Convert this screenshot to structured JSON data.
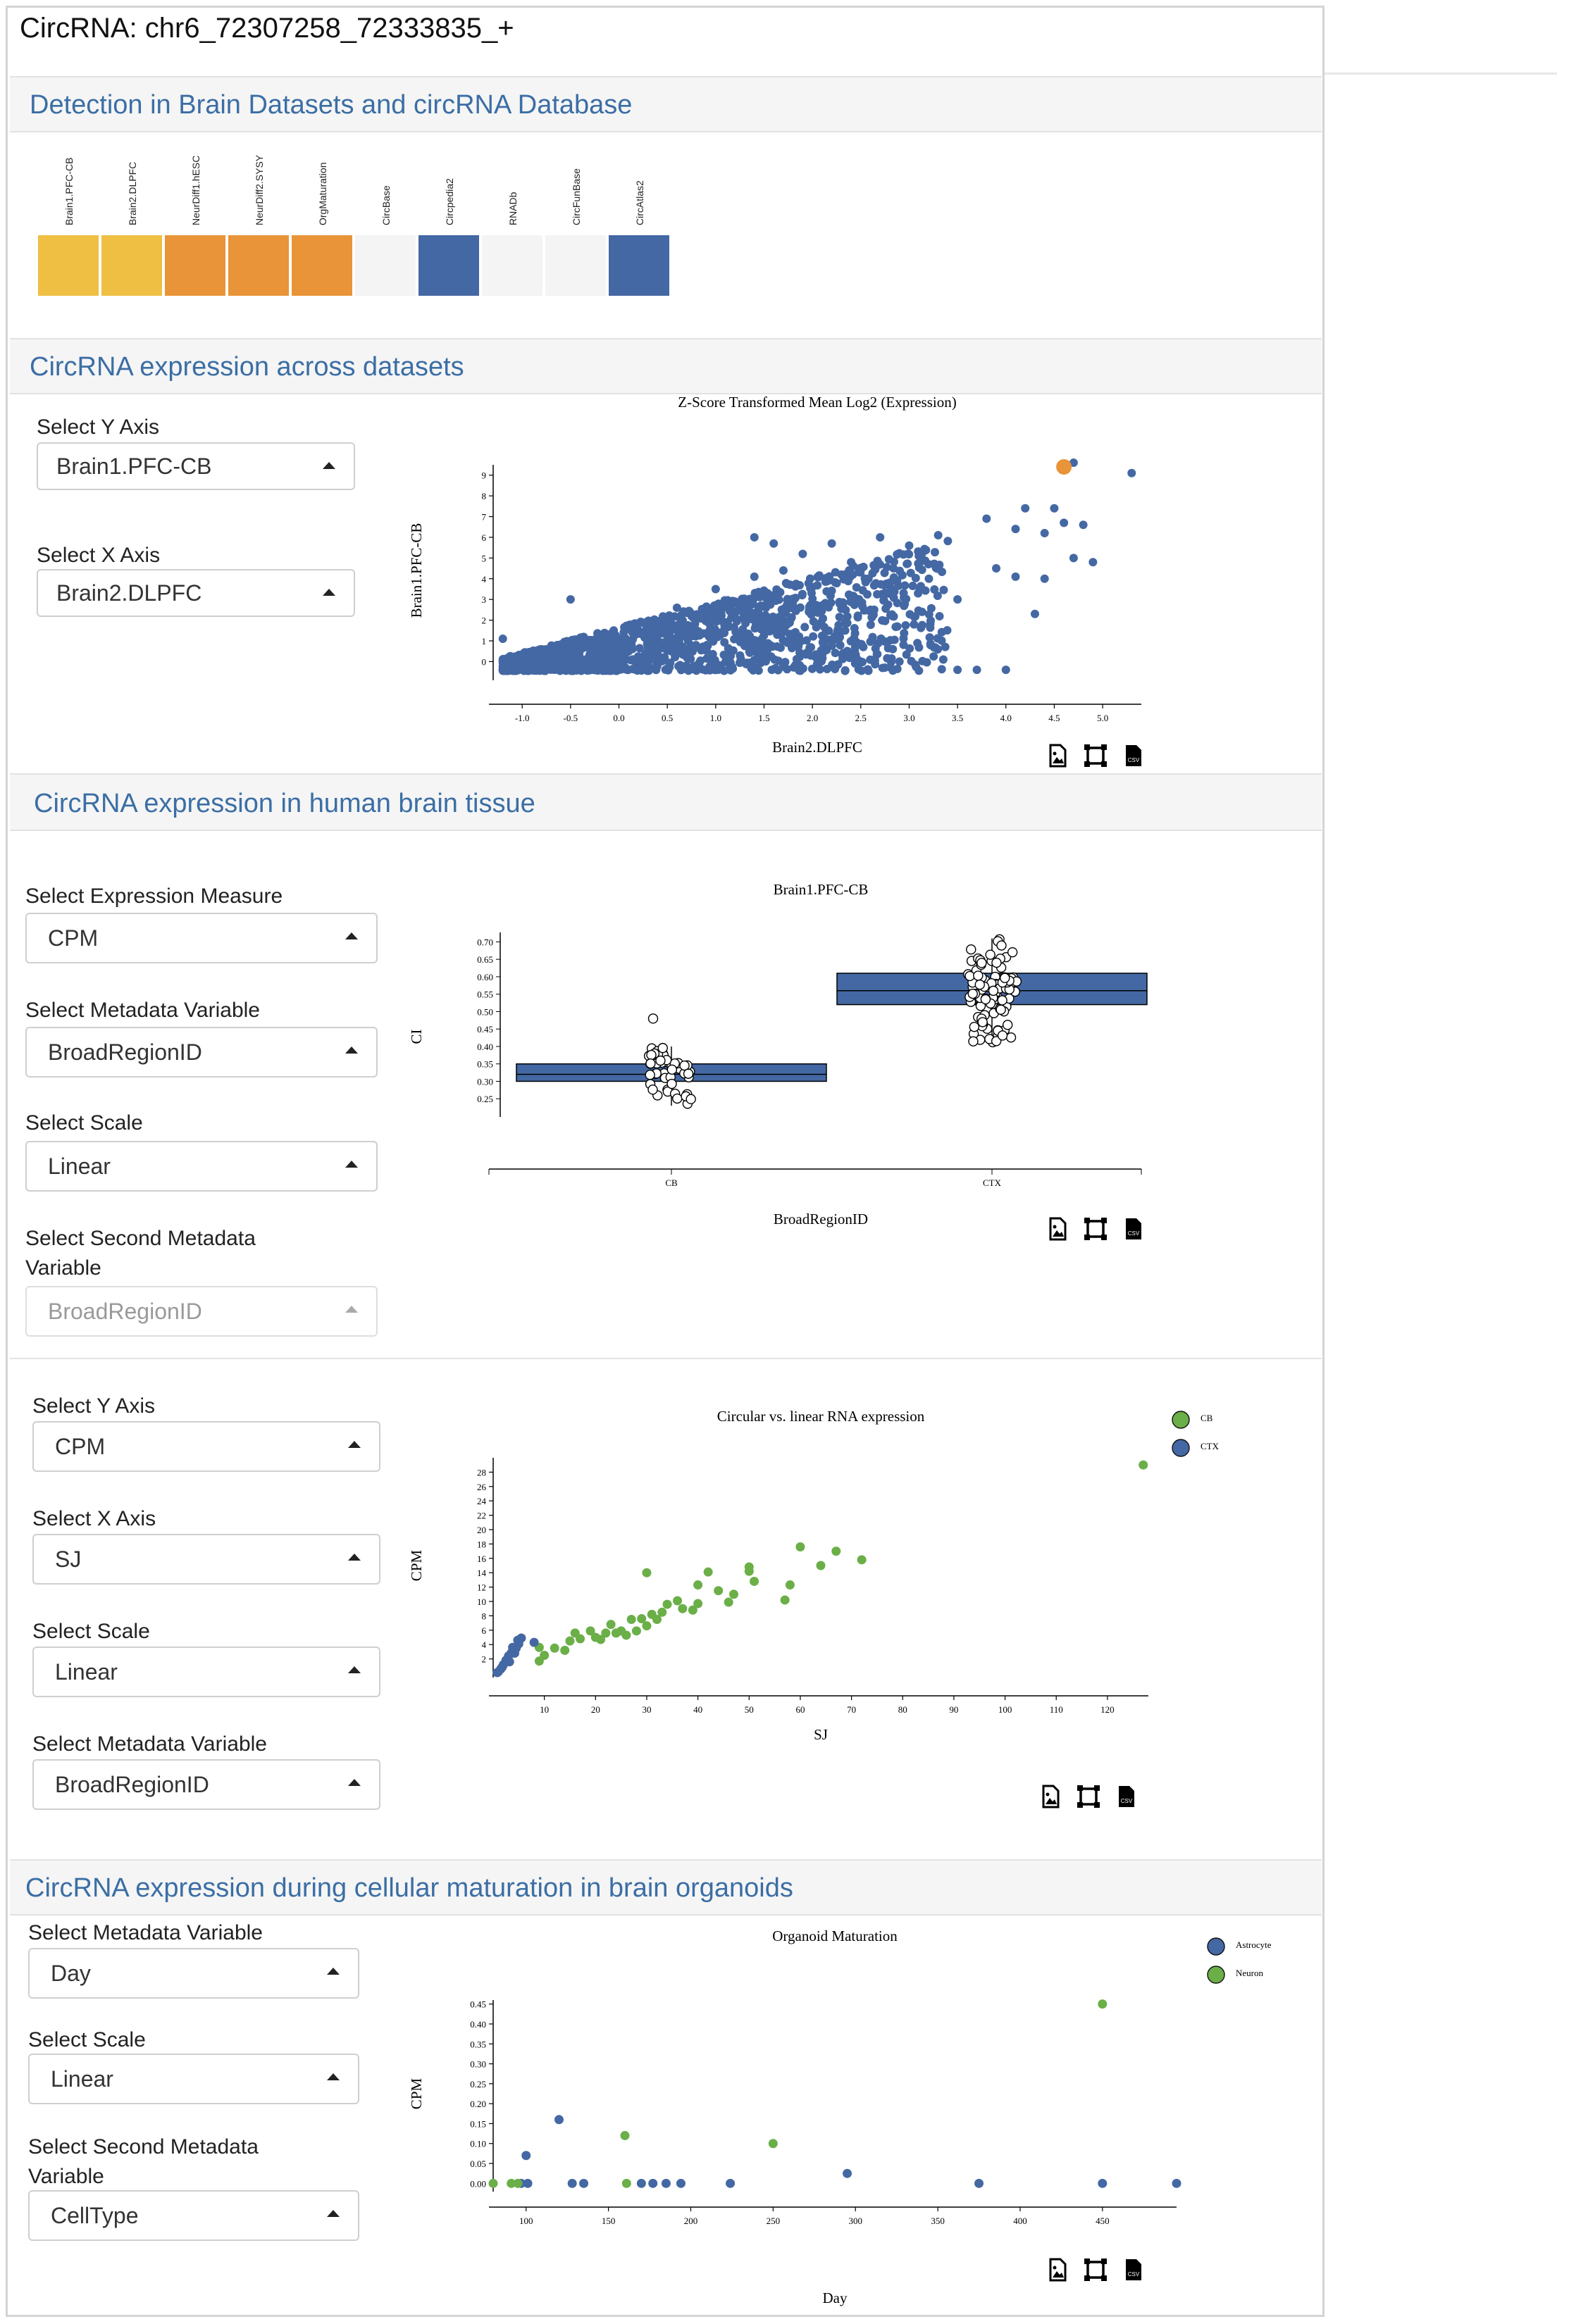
{
  "page": {
    "title": "CircRNA: chr6_72307258_72333835_+"
  },
  "sections": {
    "detection": {
      "title": "Detection in Brain Datasets and circRNA Database",
      "datasets": [
        {
          "label": "Brain1.PFC-CB",
          "color": "#EFBF44"
        },
        {
          "label": "Brain2.DLPFC",
          "color": "#EFBF44"
        },
        {
          "label": "NeurDiff1.hESC",
          "color": "#E99438"
        },
        {
          "label": "NeurDiff2.SYSY",
          "color": "#E99438"
        },
        {
          "label": "OrgMaturation",
          "color": "#E99438"
        },
        {
          "label": "CircBase",
          "color": "#F4F4F4"
        },
        {
          "label": "Circpedia2",
          "color": "#4468A3"
        },
        {
          "label": "RNADb",
          "color": "#F4F4F4"
        },
        {
          "label": "CircFunBase",
          "color": "#F4F4F4"
        },
        {
          "label": "CircAtlas2",
          "color": "#4468A3"
        }
      ]
    },
    "across": {
      "title": "CircRNA expression across datasets",
      "y_label": "Select Y Axis",
      "y_value": "Brain1.PFC-CB",
      "x_label": "Select X Axis",
      "x_value": "Brain2.DLPFC"
    },
    "tissue": {
      "title": "CircRNA expression in human brain tissue",
      "measure_label": "Select Expression Measure",
      "measure_value": "CPM",
      "meta_label": "Select Metadata Variable",
      "meta_value": "BroadRegionID",
      "scale_label": "Select Scale",
      "scale_value": "Linear",
      "second_label": "Select Second Metadata Variable",
      "second_value": "BroadRegionID"
    },
    "circlin": {
      "y_label": "Select Y Axis",
      "y_value": "CPM",
      "x_label": "Select X Axis",
      "x_value": "SJ",
      "scale_label": "Select Scale",
      "scale_value": "Linear",
      "meta_label": "Select Metadata Variable",
      "meta_value": "BroadRegionID"
    },
    "organoid": {
      "title": "CircRNA expression during cellular maturation in brain organoids",
      "meta_label": "Select Metadata Variable",
      "meta_value": "Day",
      "scale_label": "Select Scale",
      "scale_value": "Linear",
      "second_label": "Select Second Metadata Variable",
      "second_value": "CellType"
    }
  },
  "toolbar": {
    "icons": [
      "image-download-icon",
      "fullscreen-icon",
      "csv-download-icon"
    ],
    "csv_text": "CSV"
  },
  "colors": {
    "blue": "#4468A3",
    "orange": "#E99438",
    "green": "#6AAF47",
    "yellow": "#EFBF44",
    "heading": "#3b6ea5"
  },
  "chart_data": [
    {
      "type": "scatter",
      "title": "Z-Score Transformed Mean Log2 (Expression)",
      "xlabel": "Brain2.DLPFC",
      "ylabel": "Brain1.PFC-CB",
      "xlim": [
        -1.3,
        5.4
      ],
      "ylim": [
        -0.7,
        9.5
      ],
      "xticks": [
        -1.0,
        -0.5,
        0.0,
        0.5,
        1.0,
        1.5,
        2.0,
        2.5,
        3.0,
        3.5,
        4.0,
        4.5,
        5.0
      ],
      "yticks": [
        0,
        1,
        2,
        3,
        4,
        5,
        6,
        7,
        8,
        9
      ],
      "series": [
        {
          "color": "#4468A3",
          "points": [
            [
              4.7,
              9.6
            ],
            [
              5.3,
              9.1
            ],
            [
              4.5,
              7.4
            ],
            [
              4.6,
              6.7
            ],
            [
              4.8,
              6.6
            ],
            [
              4.4,
              6.2
            ],
            [
              4.1,
              6.4
            ],
            [
              4.7,
              5.0
            ],
            [
              4.9,
              4.8
            ],
            [
              4.4,
              4.0
            ],
            [
              4.1,
              4.1
            ],
            [
              4.3,
              2.3
            ],
            [
              3.9,
              4.5
            ],
            [
              3.5,
              3.0
            ],
            [
              3.2,
              4.7
            ],
            [
              3.0,
              5.6
            ],
            [
              2.8,
              3.3
            ],
            [
              2.6,
              2.5
            ],
            [
              2.9,
              0.0
            ],
            [
              2.5,
              0.0
            ],
            [
              3.5,
              -0.4
            ],
            [
              3.7,
              -0.4
            ],
            [
              4.0,
              -0.4
            ],
            [
              2.4,
              4.8
            ],
            [
              2.0,
              3.6
            ],
            [
              1.8,
              2.9
            ],
            [
              1.6,
              5.7
            ],
            [
              1.4,
              4.1
            ],
            [
              1.2,
              2.9
            ],
            [
              1.4,
              6.0
            ],
            [
              1.0,
              3.5
            ],
            [
              0.8,
              2.2
            ],
            [
              -0.5,
              3.0
            ],
            [
              -1.2,
              1.1
            ],
            [
              1.9,
              5.2
            ],
            [
              2.2,
              5.7
            ],
            [
              2.7,
              6.0
            ],
            [
              3.3,
              6.1
            ],
            [
              3.8,
              6.9
            ],
            [
              4.2,
              7.4
            ],
            [
              3.1,
              5.1
            ],
            [
              2.3,
              4.2
            ],
            [
              1.7,
              4.4
            ],
            [
              0.6,
              2.6
            ],
            [
              0.3,
              1.8
            ]
          ]
        },
        {
          "color": "#E99438",
          "points": [
            [
              4.6,
              9.4
            ]
          ]
        }
      ]
    },
    {
      "type": "box",
      "title": "Brain1.PFC-CB",
      "xlabel": "BroadRegionID",
      "ylabel": "CI",
      "categories": [
        "CB",
        "CTX"
      ],
      "ylim": [
        0.21,
        0.715
      ],
      "yticks": [
        0.25,
        0.3,
        0.35,
        0.4,
        0.45,
        0.5,
        0.55,
        0.6,
        0.65,
        0.7
      ],
      "boxes": [
        {
          "category": "CB",
          "min": 0.23,
          "q1": 0.3,
          "median": 0.32,
          "q3": 0.35,
          "max": 0.4,
          "outliers": [
            0.48
          ]
        },
        {
          "category": "CTX",
          "min": 0.41,
          "q1": 0.52,
          "median": 0.56,
          "q3": 0.61,
          "max": 0.71,
          "outliers": []
        }
      ]
    },
    {
      "type": "scatter",
      "title": "Circular vs. linear RNA expression",
      "xlabel": "SJ",
      "ylabel": "CPM",
      "xlim": [
        0,
        128
      ],
      "ylim": [
        0,
        30
      ],
      "xticks": [
        10,
        20,
        30,
        40,
        50,
        60,
        70,
        80,
        90,
        100,
        110,
        120
      ],
      "yticks": [
        2,
        4,
        6,
        8,
        10,
        12,
        14,
        16,
        18,
        20,
        22,
        24,
        26,
        28
      ],
      "series": [
        {
          "name": "CB",
          "color": "#6AAF47",
          "points": [
            [
              127,
              29
            ],
            [
              72,
              15.8
            ],
            [
              67,
              17
            ],
            [
              64,
              15
            ],
            [
              60,
              17.6
            ],
            [
              58,
              12.3
            ],
            [
              57,
              10.2
            ],
            [
              51,
              12.8
            ],
            [
              50,
              14.8
            ],
            [
              50,
              14.2
            ],
            [
              47,
              11
            ],
            [
              46,
              9.9
            ],
            [
              44,
              11.5
            ],
            [
              42,
              14.1
            ],
            [
              40,
              9.7
            ],
            [
              40,
              12.3
            ],
            [
              39,
              8.8
            ],
            [
              37,
              9
            ],
            [
              36,
              10.1
            ],
            [
              34,
              9.6
            ],
            [
              33,
              8.5
            ],
            [
              32,
              7.5
            ],
            [
              31,
              8.2
            ],
            [
              30,
              14
            ],
            [
              30,
              6.6
            ],
            [
              29,
              7.6
            ],
            [
              28,
              5.9
            ],
            [
              27,
              7.5
            ],
            [
              26,
              5.3
            ],
            [
              25,
              5.9
            ],
            [
              24,
              5.6
            ],
            [
              23,
              6.8
            ],
            [
              22,
              5.6
            ],
            [
              21,
              4.7
            ],
            [
              19,
              5.9
            ],
            [
              17,
              4.8
            ],
            [
              16,
              5.6
            ],
            [
              15,
              4.5
            ],
            [
              12,
              3.5
            ],
            [
              10,
              2.5
            ],
            [
              9,
              3.6
            ],
            [
              9,
              1.7
            ],
            [
              14,
              3.2
            ],
            [
              20,
              5.0
            ]
          ]
        },
        {
          "name": "CTX",
          "color": "#4468A3",
          "points": [
            [
              8,
              4.3
            ],
            [
              5.5,
              4.9
            ],
            [
              5,
              4.1
            ],
            [
              4.5,
              3.5
            ],
            [
              4,
              3.2
            ],
            [
              3.5,
              2.8
            ],
            [
              3,
              2.4
            ],
            [
              2.5,
              1.8
            ],
            [
              2,
              1.2
            ],
            [
              1.5,
              0.6
            ],
            [
              1,
              0.2
            ],
            [
              4.8,
              4.6
            ],
            [
              3.8,
              3.6
            ],
            [
              2.8,
              2.0
            ],
            [
              1.8,
              0.9
            ],
            [
              0.8,
              0.1
            ],
            [
              4.2,
              2.8
            ],
            [
              3.2,
              1.6
            ]
          ]
        }
      ]
    },
    {
      "type": "scatter",
      "title": "Organoid Maturation",
      "xlabel": "Day",
      "ylabel": "CPM",
      "xlim": [
        80,
        495
      ],
      "ylim": [
        -0.01,
        0.46
      ],
      "xticks": [
        100,
        150,
        200,
        250,
        300,
        350,
        400,
        450
      ],
      "yticks": [
        0.0,
        0.05,
        0.1,
        0.15,
        0.2,
        0.25,
        0.3,
        0.35,
        0.4,
        0.45
      ],
      "series": [
        {
          "name": "Astrocyte",
          "color": "#4468A3",
          "points": [
            [
              120,
              0.16
            ],
            [
              100,
              0.07
            ],
            [
              97,
              0.0
            ],
            [
              101,
              0.0
            ],
            [
              128,
              0.0
            ],
            [
              135,
              0.0
            ],
            [
              170,
              0.0
            ],
            [
              177,
              0.0
            ],
            [
              185,
              0.0
            ],
            [
              194,
              0.0
            ],
            [
              224,
              0.0
            ],
            [
              295,
              0.025
            ],
            [
              375,
              0.0
            ],
            [
              450,
              0.0
            ],
            [
              495,
              0.0
            ]
          ]
        },
        {
          "name": "Neuron",
          "color": "#6AAF47",
          "points": [
            [
              450,
              0.45
            ],
            [
              250,
              0.1
            ],
            [
              160,
              0.12
            ],
            [
              80,
              0.0
            ],
            [
              91,
              0.0
            ],
            [
              95,
              0.0
            ],
            [
              161,
              0.0
            ]
          ]
        }
      ]
    }
  ]
}
